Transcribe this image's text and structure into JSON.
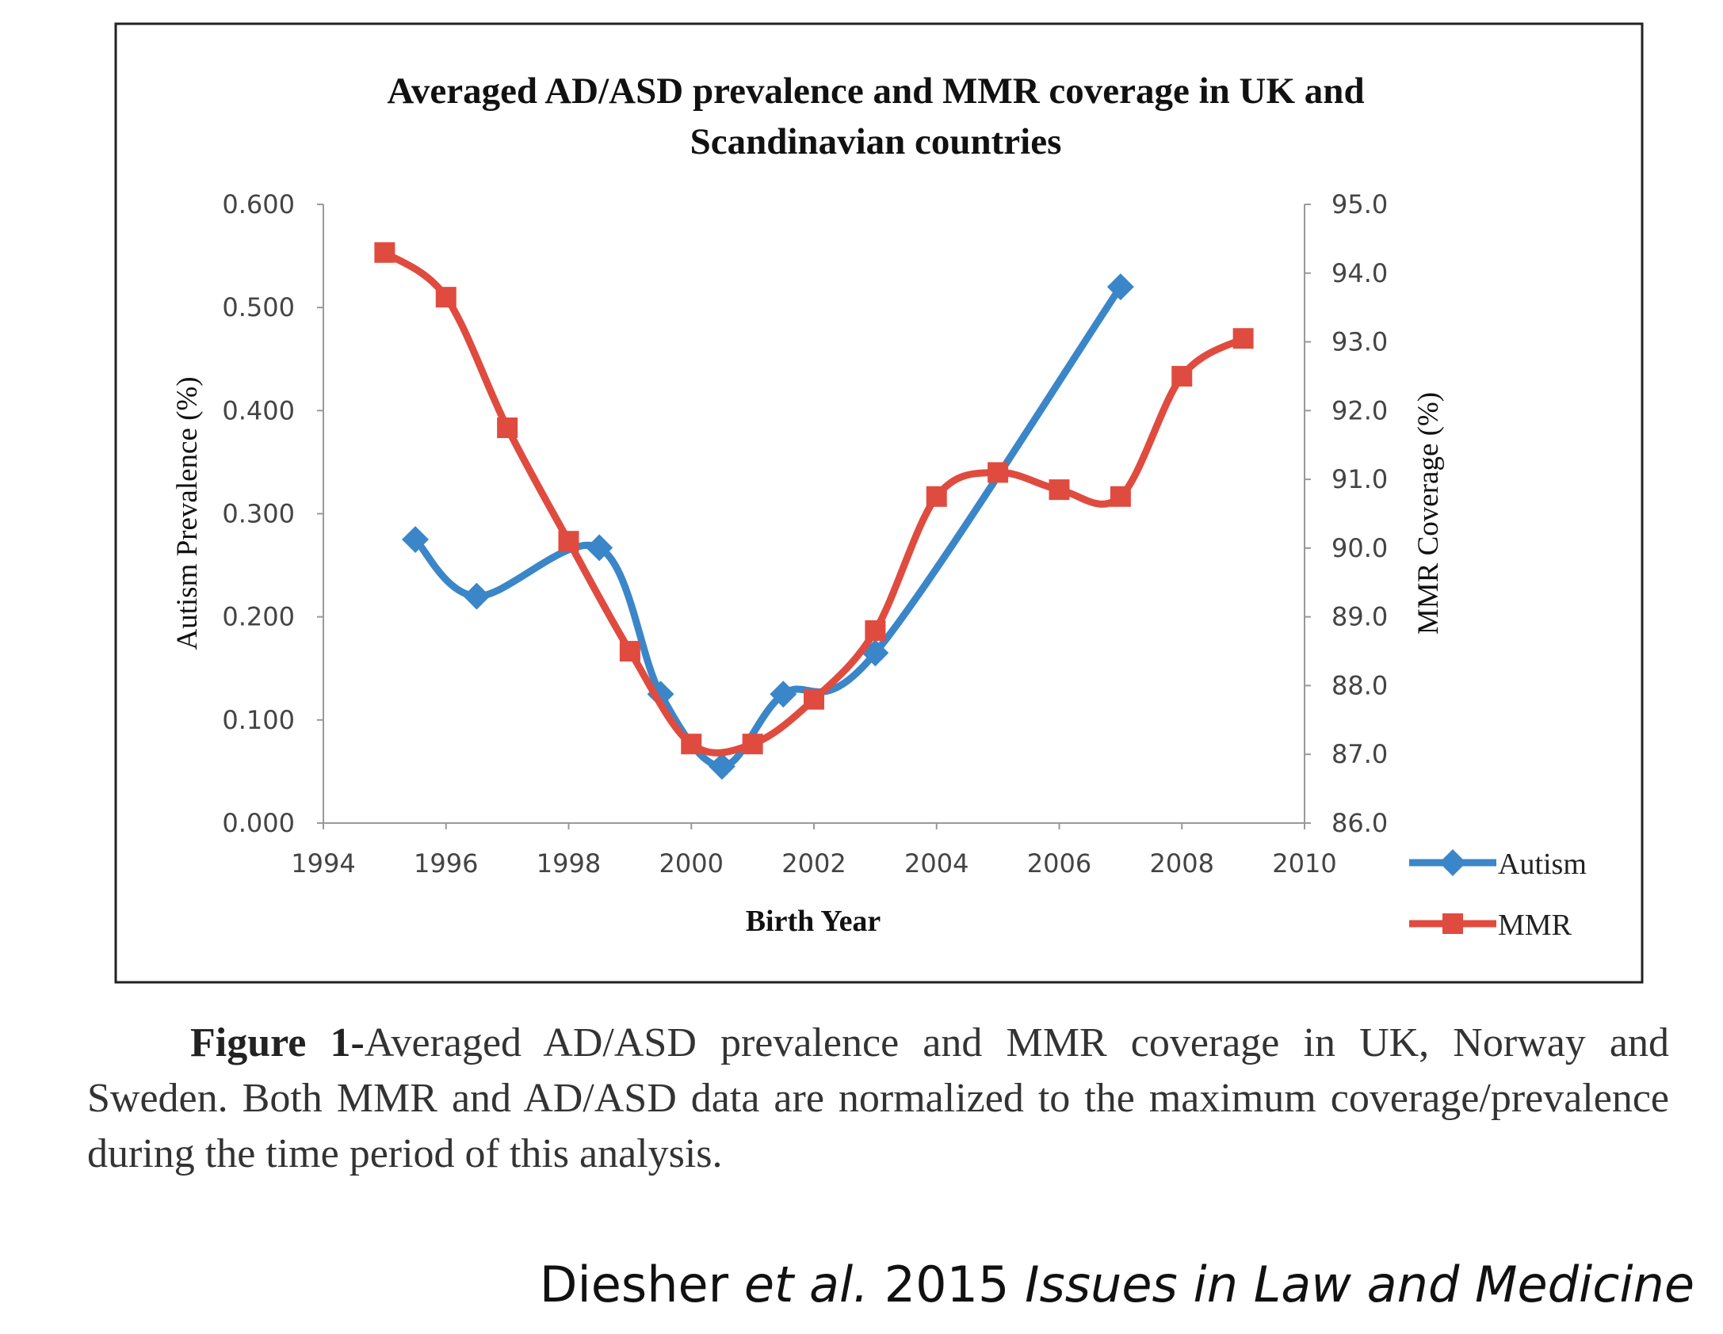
{
  "chart_data": {
    "type": "line",
    "title_line1": "Averaged AD/ASD prevalence and MMR coverage in UK and",
    "title_line2": "Scandinavian countries",
    "xlabel": "Birth Year",
    "ylabel_left": "Autism Prevalence (%)",
    "ylabel_right": "MMR Coverage (%)",
    "xlim": [
      1994,
      2010
    ],
    "ylim_left": [
      0,
      0.6
    ],
    "ylim_right": [
      86,
      95
    ],
    "x_ticks": [
      "1994",
      "1996",
      "1998",
      "2000",
      "2002",
      "2004",
      "2006",
      "2008",
      "2010"
    ],
    "y_left_ticks": [
      "0.000",
      "0.100",
      "0.200",
      "0.300",
      "0.400",
      "0.500",
      "0.600"
    ],
    "y_right_ticks": [
      "86.0",
      "87.0",
      "88.0",
      "89.0",
      "90.0",
      "91.0",
      "92.0",
      "93.0",
      "94.0",
      "95.0"
    ],
    "grid": false,
    "legend_position": "bottom-right",
    "series": [
      {
        "name": "Autism",
        "axis": "left",
        "color": "#3b86c8",
        "marker": "diamond",
        "x": [
          1995.5,
          1996.5,
          1998.5,
          1999.5,
          2000.5,
          2001.5,
          2003.0,
          2007.0
        ],
        "y": [
          0.275,
          0.22,
          0.267,
          0.125,
          0.055,
          0.125,
          0.165,
          0.52
        ]
      },
      {
        "name": "MMR",
        "axis": "right",
        "color": "#e04b3f",
        "marker": "square",
        "x": [
          1995.0,
          1996.0,
          1997.0,
          1998.0,
          1999.0,
          2000.0,
          2001.0,
          2002.0,
          2003.0,
          2004.0,
          2005.0,
          2006.0,
          2007.0,
          2008.0,
          2009.0
        ],
        "y": [
          94.3,
          93.65,
          91.75,
          90.1,
          88.5,
          87.15,
          87.15,
          87.8,
          88.8,
          90.75,
          91.1,
          90.85,
          90.75,
          92.5,
          93.05
        ]
      }
    ]
  },
  "caption": {
    "label": "Figure 1-",
    "text": "Averaged AD/ASD prevalence and MMR coverage in UK, Norway and Sweden. Both MMR and AD/ASD data are normalized to the maximum coverage/prevalence during the time period of this analysis."
  },
  "citation": {
    "authors": "Diesher ",
    "etal": "et al.",
    "year": " 2015 ",
    "journal": "Issues in Law and Medicine"
  }
}
